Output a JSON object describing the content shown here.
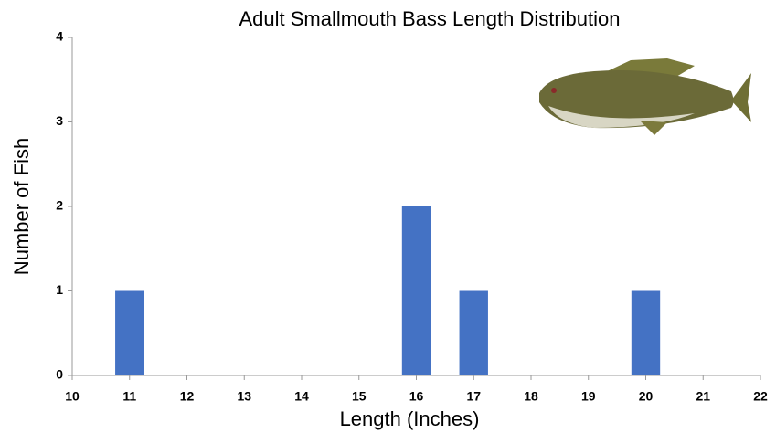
{
  "chart_data": {
    "type": "bar",
    "title": "Adult Smallmouth Bass Length Distribution",
    "x_label": "Length (Inches)",
    "y_label": "Number of Fish",
    "x": [
      11,
      16,
      17,
      20
    ],
    "values": [
      1,
      2,
      1,
      1
    ],
    "color": "#4472c4",
    "xlim": [
      10,
      22
    ],
    "xticks": [
      10,
      11,
      12,
      13,
      14,
      15,
      16,
      17,
      18,
      19,
      20,
      21,
      22
    ],
    "ylim": [
      0,
      4
    ],
    "yticks": [
      0,
      1,
      2,
      3,
      4
    ],
    "grid": false
  }
}
